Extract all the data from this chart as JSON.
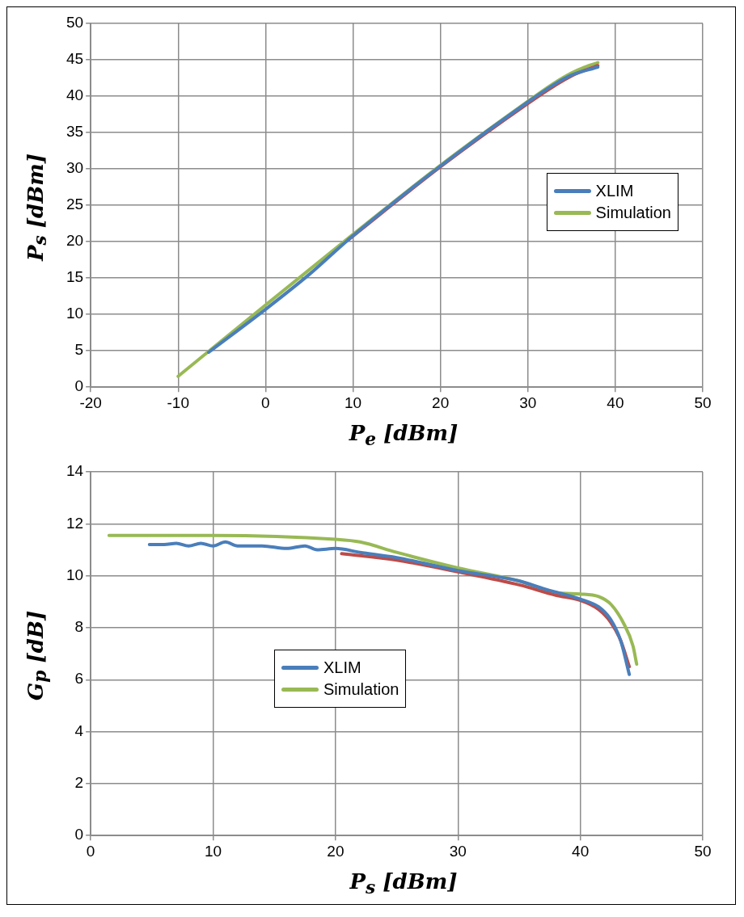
{
  "chart_data": [
    {
      "type": "line",
      "xlabel": "P$_{e}$ [dBm]",
      "ylabel": "P$_{s}$ [dBm]",
      "xlim": [
        -20,
        50
      ],
      "xticks": [
        -20,
        -10,
        0,
        10,
        20,
        30,
        40,
        50
      ],
      "ylim": [
        0,
        50
      ],
      "yticks": [
        0,
        5,
        10,
        15,
        20,
        25,
        30,
        35,
        40,
        45,
        50
      ],
      "grid": true,
      "legend": "right",
      "marker": "none",
      "line_style": "solid",
      "series": [
        {
          "name": "XLIM",
          "color": "#4a7ebb",
          "x": [
            -6.5,
            0,
            5,
            9.5,
            20,
            30,
            33,
            35,
            38
          ],
          "values": [
            4.8,
            10.7,
            15.5,
            20.3,
            30.4,
            39.2,
            41.6,
            42.9,
            44.0
          ]
        },
        {
          "color": "#be4b48",
          "x": [
            9.5,
            20,
            30,
            33,
            35,
            38
          ],
          "values": [
            20.3,
            30.3,
            39,
            41.4,
            42.8,
            44.2
          ]
        },
        {
          "name": "Simulation",
          "color": "#98b954",
          "x": [
            -10,
            0,
            10,
            20,
            30,
            33,
            35,
            36.5,
            38
          ],
          "values": [
            1.5,
            11.3,
            21,
            30.5,
            39.3,
            41.8,
            43.2,
            44,
            44.6
          ]
        }
      ]
    },
    {
      "type": "line",
      "xlabel": "P$_{s}$ [dBm]",
      "ylabel": "G$_{p}$ [dB]",
      "xlim": [
        0,
        50
      ],
      "xticks": [
        0,
        10,
        20,
        30,
        40,
        50
      ],
      "ylim": [
        0,
        14
      ],
      "yticks": [
        0,
        2,
        4,
        6,
        8,
        10,
        12,
        14
      ],
      "grid": true,
      "legend": "center",
      "marker": "none",
      "line_style": "solid",
      "series": [
        {
          "name": "XLIM",
          "color": "#4a7ebb",
          "x": [
            4.8,
            6,
            7,
            8,
            9,
            10,
            11,
            12,
            14,
            16,
            17.5,
            18.5,
            20,
            22,
            25,
            30,
            35,
            37,
            40,
            41.5,
            42.5,
            43.3,
            44
          ],
          "values": [
            11.2,
            11.2,
            11.25,
            11.15,
            11.25,
            11.15,
            11.3,
            11.15,
            11.15,
            11.05,
            11.15,
            11.0,
            11.05,
            10.9,
            10.7,
            10.2,
            9.8,
            9.5,
            9.1,
            8.8,
            8.3,
            7.5,
            6.2
          ]
        },
        {
          "color": "#be4b48",
          "x": [
            20.5,
            25,
            30,
            35,
            38,
            40,
            41.5,
            42.5,
            43.3,
            44
          ],
          "values": [
            10.85,
            10.6,
            10.15,
            9.65,
            9.25,
            9.05,
            8.7,
            8.2,
            7.5,
            6.5
          ]
        },
        {
          "name": "Simulation",
          "color": "#98b954",
          "x": [
            1.5,
            10,
            20,
            22,
            25,
            30,
            35,
            38,
            40,
            41.5,
            42.5,
            43.5,
            44.3,
            44.6
          ],
          "values": [
            11.55,
            11.55,
            11.4,
            11.3,
            10.9,
            10.3,
            9.8,
            9.35,
            9.3,
            9.2,
            8.9,
            8.2,
            7.3,
            6.6
          ]
        }
      ]
    }
  ]
}
